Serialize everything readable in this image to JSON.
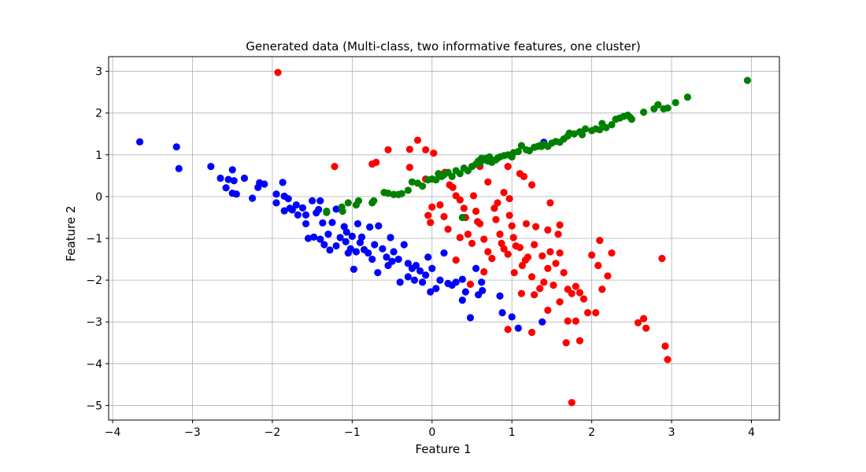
{
  "chart_data": {
    "type": "scatter",
    "title": "Generated data (Multi-class, two informative features, one cluster)",
    "xlabel": "Feature 1",
    "ylabel": "Feature 2",
    "xlim": [
      -4.05,
      4.35
    ],
    "ylim": [
      -5.35,
      3.35
    ],
    "xticks": [
      -4,
      -3,
      -2,
      -1,
      0,
      1,
      2,
      3,
      4
    ],
    "yticks": [
      -5,
      -4,
      -3,
      -2,
      -1,
      0,
      1,
      2,
      3
    ],
    "xtick_labels": [
      "−4",
      "−3",
      "−2",
      "−1",
      "0",
      "1",
      "2",
      "3",
      "4"
    ],
    "ytick_labels": [
      "−5",
      "−4",
      "−3",
      "−2",
      "−1",
      "0",
      "1",
      "2",
      "3"
    ],
    "grid": true,
    "series": [
      {
        "color": "#0000ff",
        "points": [
          [
            -3.66,
            1.31
          ],
          [
            -3.2,
            1.19
          ],
          [
            -3.17,
            0.67
          ],
          [
            -2.77,
            0.72
          ],
          [
            -2.65,
            0.44
          ],
          [
            -2.55,
            0.41
          ],
          [
            -2.48,
            0.38
          ],
          [
            -2.5,
            0.64
          ],
          [
            -2.58,
            0.21
          ],
          [
            -2.5,
            0.08
          ],
          [
            -2.45,
            0.06
          ],
          [
            -2.35,
            0.44
          ],
          [
            -2.25,
            -0.04
          ],
          [
            -2.16,
            0.33
          ],
          [
            -2.18,
            0.22
          ],
          [
            -2.1,
            0.3
          ],
          [
            -1.95,
            0.06
          ],
          [
            -1.87,
            0.34
          ],
          [
            -1.95,
            -0.15
          ],
          [
            -1.85,
            0.01
          ],
          [
            -1.8,
            -0.05
          ],
          [
            -1.78,
            -0.28
          ],
          [
            -1.85,
            -0.34
          ],
          [
            -1.75,
            -0.32
          ],
          [
            -1.7,
            -0.2
          ],
          [
            -1.68,
            -0.44
          ],
          [
            -1.62,
            -0.27
          ],
          [
            -1.58,
            -0.65
          ],
          [
            -1.5,
            -0.1
          ],
          [
            -1.45,
            -0.39
          ],
          [
            -1.4,
            -0.1
          ],
          [
            -1.42,
            -0.31
          ],
          [
            -1.37,
            -0.63
          ],
          [
            -1.48,
            -0.97
          ],
          [
            -1.4,
            -1.02
          ],
          [
            -1.3,
            -0.9
          ],
          [
            -1.35,
            -1.15
          ],
          [
            -1.25,
            -0.62
          ],
          [
            -1.2,
            -1.18
          ],
          [
            -1.15,
            -0.98
          ],
          [
            -1.1,
            -0.72
          ],
          [
            -1.07,
            -0.85
          ],
          [
            -1.02,
            -1.25
          ],
          [
            -1.0,
            -0.95
          ],
          [
            -0.95,
            -1.32
          ],
          [
            -0.93,
            -0.65
          ],
          [
            -0.9,
            -1.1
          ],
          [
            -0.88,
            -0.97
          ],
          [
            -0.85,
            -1.27
          ],
          [
            -0.8,
            -1.35
          ],
          [
            -0.78,
            -0.73
          ],
          [
            -0.72,
            -1.15
          ],
          [
            -0.67,
            -0.7
          ],
          [
            -0.62,
            -1.25
          ],
          [
            -0.57,
            -1.45
          ],
          [
            -0.52,
            -0.98
          ],
          [
            -0.48,
            -1.32
          ],
          [
            -0.42,
            -1.5
          ],
          [
            -0.35,
            -1.15
          ],
          [
            -0.3,
            -1.6
          ],
          [
            -0.25,
            -1.72
          ],
          [
            -0.2,
            -1.65
          ],
          [
            -0.15,
            -1.78
          ],
          [
            -0.08,
            -1.88
          ],
          [
            -0.05,
            -1.45
          ],
          [
            0.0,
            -1.72
          ],
          [
            0.05,
            -2.2
          ],
          [
            -0.02,
            -2.28
          ],
          [
            -0.12,
            -2.05
          ],
          [
            -0.22,
            -2.0
          ],
          [
            -0.4,
            -2.05
          ],
          [
            -0.55,
            -1.65
          ],
          [
            -0.75,
            -1.5
          ],
          [
            -0.98,
            -1.74
          ],
          [
            -0.68,
            -1.82
          ],
          [
            0.15,
            -1.35
          ],
          [
            0.2,
            -2.08
          ],
          [
            0.3,
            -2.05
          ],
          [
            0.38,
            -1.98
          ],
          [
            0.42,
            -2.28
          ],
          [
            0.38,
            -2.48
          ],
          [
            0.48,
            -2.9
          ],
          [
            0.55,
            -1.72
          ],
          [
            0.58,
            -2.35
          ],
          [
            0.63,
            -2.25
          ],
          [
            0.62,
            -2.05
          ],
          [
            0.85,
            -2.38
          ],
          [
            0.88,
            -2.78
          ],
          [
            1.0,
            -2.88
          ],
          [
            1.08,
            -3.15
          ],
          [
            1.38,
            -3.0
          ],
          [
            1.4,
            1.3
          ],
          [
            -1.2,
            -0.3
          ],
          [
            -1.58,
            -0.44
          ],
          [
            -1.08,
            -1.08
          ],
          [
            -0.5,
            -1.55
          ],
          [
            0.1,
            -2.0
          ],
          [
            -0.3,
            -1.92
          ],
          [
            0.25,
            -2.12
          ],
          [
            -1.55,
            -1.0
          ],
          [
            -1.28,
            -1.28
          ],
          [
            -1.05,
            -1.35
          ]
        ]
      },
      {
        "color": "#ff0000",
        "points": [
          [
            -1.93,
            2.97
          ],
          [
            -1.22,
            0.72
          ],
          [
            -0.75,
            0.78
          ],
          [
            -0.7,
            0.82
          ],
          [
            -0.55,
            1.12
          ],
          [
            -0.28,
            1.13
          ],
          [
            -0.18,
            1.35
          ],
          [
            -0.08,
            1.12
          ],
          [
            0.02,
            1.04
          ],
          [
            -0.28,
            0.7
          ],
          [
            -0.08,
            0.42
          ],
          [
            0.16,
            0.58
          ],
          [
            0.22,
            0.28
          ],
          [
            0.26,
            0.22
          ],
          [
            0.3,
            0.02
          ],
          [
            0.35,
            -0.08
          ],
          [
            0.1,
            -0.2
          ],
          [
            0.0,
            -0.25
          ],
          [
            -0.05,
            -0.45
          ],
          [
            -0.02,
            -0.62
          ],
          [
            0.15,
            -0.48
          ],
          [
            0.2,
            -0.78
          ],
          [
            0.3,
            -1.52
          ],
          [
            0.45,
            -0.9
          ],
          [
            0.5,
            -1.12
          ],
          [
            0.55,
            -0.35
          ],
          [
            0.57,
            -0.6
          ],
          [
            0.6,
            -0.65
          ],
          [
            0.65,
            -1.02
          ],
          [
            0.7,
            -1.32
          ],
          [
            0.75,
            -1.48
          ],
          [
            0.8,
            -0.55
          ],
          [
            0.85,
            -0.9
          ],
          [
            0.87,
            -1.12
          ],
          [
            0.9,
            -1.25
          ],
          [
            0.95,
            -1.38
          ],
          [
            0.97,
            -0.45
          ],
          [
            1.0,
            -0.7
          ],
          [
            1.02,
            -0.98
          ],
          [
            1.05,
            -1.18
          ],
          [
            1.1,
            -1.22
          ],
          [
            1.13,
            -1.65
          ],
          [
            1.17,
            -1.52
          ],
          [
            1.2,
            -1.45
          ],
          [
            1.25,
            -1.92
          ],
          [
            1.28,
            -1.15
          ],
          [
            1.3,
            -0.72
          ],
          [
            1.35,
            -2.2
          ],
          [
            1.4,
            -2.05
          ],
          [
            1.45,
            -1.72
          ],
          [
            1.48,
            -1.32
          ],
          [
            1.52,
            -2.12
          ],
          [
            1.55,
            -1.6
          ],
          [
            1.6,
            -2.52
          ],
          [
            1.65,
            -1.82
          ],
          [
            1.7,
            -2.22
          ],
          [
            1.75,
            -2.32
          ],
          [
            1.8,
            -2.15
          ],
          [
            1.85,
            -2.3
          ],
          [
            1.9,
            -2.45
          ],
          [
            1.95,
            -2.78
          ],
          [
            2.0,
            -1.4
          ],
          [
            2.05,
            -2.78
          ],
          [
            2.1,
            -1.05
          ],
          [
            2.13,
            -2.22
          ],
          [
            2.2,
            -1.9
          ],
          [
            2.25,
            -1.35
          ],
          [
            1.48,
            -0.15
          ],
          [
            1.45,
            -0.8
          ],
          [
            1.6,
            -0.68
          ],
          [
            1.58,
            -0.9
          ],
          [
            1.1,
            0.55
          ],
          [
            1.15,
            0.48
          ],
          [
            1.25,
            0.28
          ],
          [
            0.95,
            0.72
          ],
          [
            0.7,
            0.35
          ],
          [
            0.6,
            0.72
          ],
          [
            0.95,
            -3.18
          ],
          [
            1.25,
            -3.25
          ],
          [
            1.45,
            -2.72
          ],
          [
            1.7,
            -2.98
          ],
          [
            1.68,
            -3.5
          ],
          [
            1.8,
            -2.98
          ],
          [
            1.85,
            -3.45
          ],
          [
            1.75,
            -4.93
          ],
          [
            2.58,
            -3.02
          ],
          [
            2.65,
            -2.92
          ],
          [
            2.68,
            -3.15
          ],
          [
            2.88,
            -1.48
          ],
          [
            2.92,
            -3.58
          ],
          [
            2.95,
            -3.9
          ],
          [
            0.52,
            0.02
          ],
          [
            0.42,
            -0.5
          ],
          [
            0.35,
            -0.98
          ],
          [
            0.48,
            -2.1
          ],
          [
            0.65,
            -1.8
          ],
          [
            0.82,
            -0.15
          ],
          [
            0.78,
            -0.28
          ],
          [
            1.18,
            -0.65
          ],
          [
            1.03,
            -1.82
          ],
          [
            1.12,
            -2.32
          ],
          [
            1.28,
            -2.35
          ],
          [
            1.38,
            -1.42
          ],
          [
            0.9,
            0.1
          ],
          [
            0.97,
            -0.05
          ],
          [
            2.08,
            -1.65
          ],
          [
            1.6,
            -1.35
          ],
          [
            0.4,
            -0.28
          ]
        ]
      },
      {
        "color": "#008000",
        "points": [
          [
            -1.32,
            -0.35
          ],
          [
            -1.13,
            -0.25
          ],
          [
            -1.12,
            -0.35
          ],
          [
            -1.05,
            -0.15
          ],
          [
            -0.95,
            -0.2
          ],
          [
            -0.92,
            -0.1
          ],
          [
            -0.75,
            -0.15
          ],
          [
            -0.73,
            -0.1
          ],
          [
            -0.6,
            0.1
          ],
          [
            -0.55,
            0.08
          ],
          [
            -0.48,
            0.05
          ],
          [
            -0.42,
            0.05
          ],
          [
            -0.38,
            0.07
          ],
          [
            -0.3,
            0.15
          ],
          [
            -0.25,
            0.35
          ],
          [
            -0.18,
            0.32
          ],
          [
            -0.12,
            0.25
          ],
          [
            -0.05,
            0.4
          ],
          [
            0.05,
            0.4
          ],
          [
            0.08,
            0.55
          ],
          [
            0.12,
            0.48
          ],
          [
            0.15,
            0.52
          ],
          [
            0.2,
            0.58
          ],
          [
            0.25,
            0.48
          ],
          [
            0.3,
            0.62
          ],
          [
            0.35,
            0.55
          ],
          [
            0.4,
            0.68
          ],
          [
            0.45,
            0.62
          ],
          [
            0.5,
            0.72
          ],
          [
            0.55,
            0.78
          ],
          [
            0.58,
            0.85
          ],
          [
            0.6,
            0.8
          ],
          [
            0.65,
            0.88
          ],
          [
            0.68,
            0.92
          ],
          [
            0.7,
            0.85
          ],
          [
            0.73,
            0.9
          ],
          [
            0.75,
            0.82
          ],
          [
            0.8,
            0.88
          ],
          [
            0.82,
            0.92
          ],
          [
            0.85,
            0.95
          ],
          [
            0.9,
            0.98
          ],
          [
            0.95,
            1.0
          ],
          [
            1.0,
            0.95
          ],
          [
            1.02,
            1.05
          ],
          [
            1.08,
            1.08
          ],
          [
            1.12,
            1.22
          ],
          [
            1.18,
            1.12
          ],
          [
            1.22,
            1.1
          ],
          [
            1.28,
            1.18
          ],
          [
            1.32,
            1.2
          ],
          [
            1.35,
            1.22
          ],
          [
            1.4,
            1.25
          ],
          [
            1.45,
            1.2
          ],
          [
            1.5,
            1.28
          ],
          [
            1.55,
            1.32
          ],
          [
            1.6,
            1.3
          ],
          [
            1.65,
            1.38
          ],
          [
            1.7,
            1.45
          ],
          [
            1.72,
            1.52
          ],
          [
            1.78,
            1.5
          ],
          [
            1.85,
            1.55
          ],
          [
            1.88,
            1.48
          ],
          [
            1.92,
            1.62
          ],
          [
            2.0,
            1.58
          ],
          [
            2.05,
            1.62
          ],
          [
            2.1,
            1.6
          ],
          [
            2.13,
            1.75
          ],
          [
            2.18,
            1.65
          ],
          [
            2.25,
            1.72
          ],
          [
            2.3,
            1.85
          ],
          [
            2.35,
            1.88
          ],
          [
            2.4,
            1.92
          ],
          [
            2.45,
            1.95
          ],
          [
            2.48,
            1.9
          ],
          [
            2.5,
            1.85
          ],
          [
            2.65,
            2.02
          ],
          [
            2.78,
            2.1
          ],
          [
            2.83,
            2.2
          ],
          [
            2.9,
            2.1
          ],
          [
            2.95,
            2.12
          ],
          [
            3.05,
            2.25
          ],
          [
            3.2,
            2.38
          ],
          [
            3.95,
            2.78
          ],
          [
            -1.32,
            -0.38
          ],
          [
            -0.48,
            0.05
          ],
          [
            0.0,
            0.42
          ],
          [
            0.38,
            -0.5
          ],
          [
            1.37,
            1.2
          ],
          [
            0.62,
            0.92
          ],
          [
            0.72,
            0.95
          ]
        ]
      }
    ]
  }
}
